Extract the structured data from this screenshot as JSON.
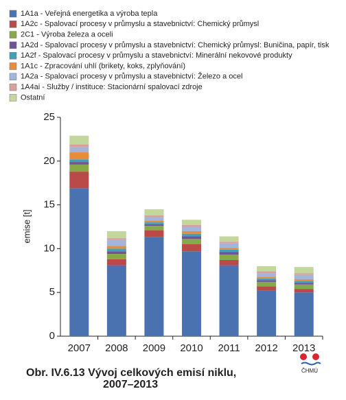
{
  "chart_data": {
    "type": "stacked_bar",
    "caption": [
      "Obr. IV.6.13  Vývoj celkových emisí niklu,",
      "2007–2013"
    ],
    "y_label": "emise [t]",
    "logo_text": "ČHMÚ",
    "categories": [
      "2007",
      "2008",
      "2009",
      "2010",
      "2011",
      "2012",
      "2013"
    ],
    "series": [
      {
        "name": "1A1a - Veřejná energetika a výroba tepla",
        "color": "#4a72b0",
        "values": [
          16.9,
          8.1,
          11.3,
          9.7,
          8.1,
          5.2,
          5.0
        ]
      },
      {
        "name": "1A2c - Spalovací procesy v průmyslu a stavebnictví: Chemický průmysl",
        "color": "#b94a48",
        "values": [
          1.9,
          0.7,
          0.8,
          0.8,
          0.6,
          0.5,
          0.4
        ]
      },
      {
        "name": "2C1 - Výroba železa a oceli",
        "color": "#86a94a",
        "values": [
          0.8,
          0.6,
          0.5,
          0.6,
          0.6,
          0.5,
          0.5
        ]
      },
      {
        "name": "1A2d - Spalovací procesy v průmyslu a stavebnictví: Chemický průmysl: Buničina, papír, tisk",
        "color": "#6f5597",
        "values": [
          0.3,
          0.3,
          0.2,
          0.3,
          0.3,
          0.2,
          0.2
        ]
      },
      {
        "name": "1A2f - Spalovací procesy v průmyslu a stavebnictví: Minerální nekovové produkty",
        "color": "#3ea1b8",
        "values": [
          0.3,
          0.3,
          0.2,
          0.3,
          0.3,
          0.2,
          0.2
        ]
      },
      {
        "name": "1A1c - Zpracování uhlí (brikety, koks, zplyňování)",
        "color": "#e88c3c",
        "values": [
          0.8,
          0.3,
          0.2,
          0.3,
          0.2,
          0.2,
          0.2
        ]
      },
      {
        "name": "1A2a - Spalovací procesy v průmyslu a stavebnictví: Železo a ocel",
        "color": "#a2b5dc",
        "values": [
          0.6,
          0.7,
          0.4,
          0.5,
          0.5,
          0.4,
          0.5
        ]
      },
      {
        "name": "1A4ai - Služby / instituce: Stacionární spalovací zdroje",
        "color": "#dca09c",
        "values": [
          0.3,
          0.2,
          0.2,
          0.2,
          0.2,
          0.2,
          0.2
        ]
      },
      {
        "name": "Ostatní",
        "color": "#c3d69b",
        "values": [
          1.0,
          0.8,
          0.7,
          0.6,
          0.6,
          0.6,
          0.7
        ]
      }
    ],
    "ylim": [
      0,
      25
    ],
    "yticks": [
      0,
      5,
      10,
      15,
      20,
      25
    ]
  }
}
